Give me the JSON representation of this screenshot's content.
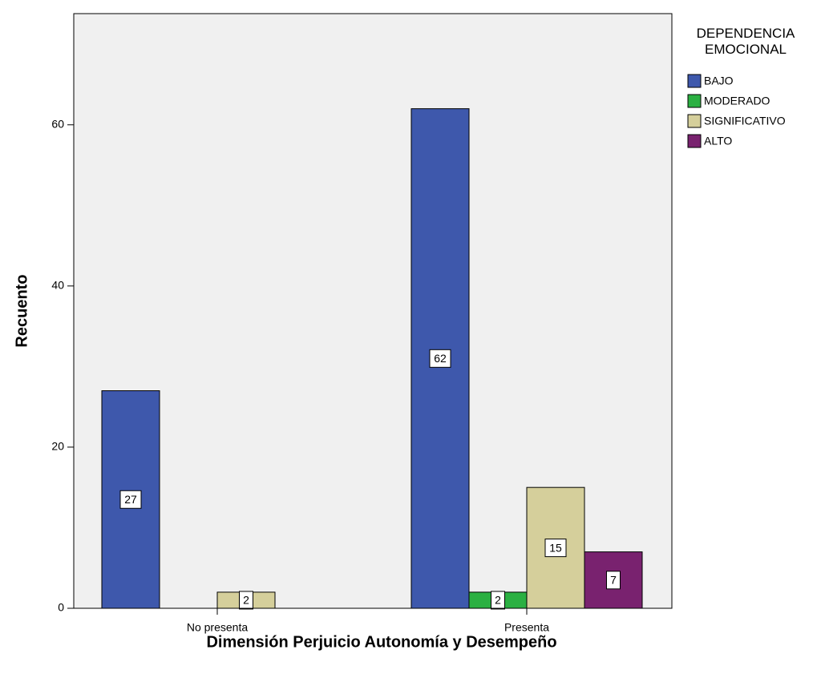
{
  "chart_data": {
    "type": "bar",
    "x_label": "Dimensión Perjuicio Autonomía y Desempeño",
    "y_label": "Recuento",
    "legend_title": "DEPENDENCIA EMOCIONAL",
    "categories": [
      "No presenta",
      "Presenta"
    ],
    "series": [
      {
        "name": "BAJO",
        "color": "#3e58ac",
        "values": [
          27,
          62
        ]
      },
      {
        "name": "MODERADO",
        "color": "#2bb042",
        "values": [
          null,
          2
        ]
      },
      {
        "name": "SIGNIFICATIVO",
        "color": "#d5cf9b",
        "values": [
          2,
          15
        ]
      },
      {
        "name": "ALTO",
        "color": "#79226f",
        "values": [
          null,
          7
        ]
      }
    ],
    "ylim": [
      0,
      73.8
    ],
    "yticks": [
      0,
      20,
      40,
      60
    ],
    "legend": "right"
  }
}
